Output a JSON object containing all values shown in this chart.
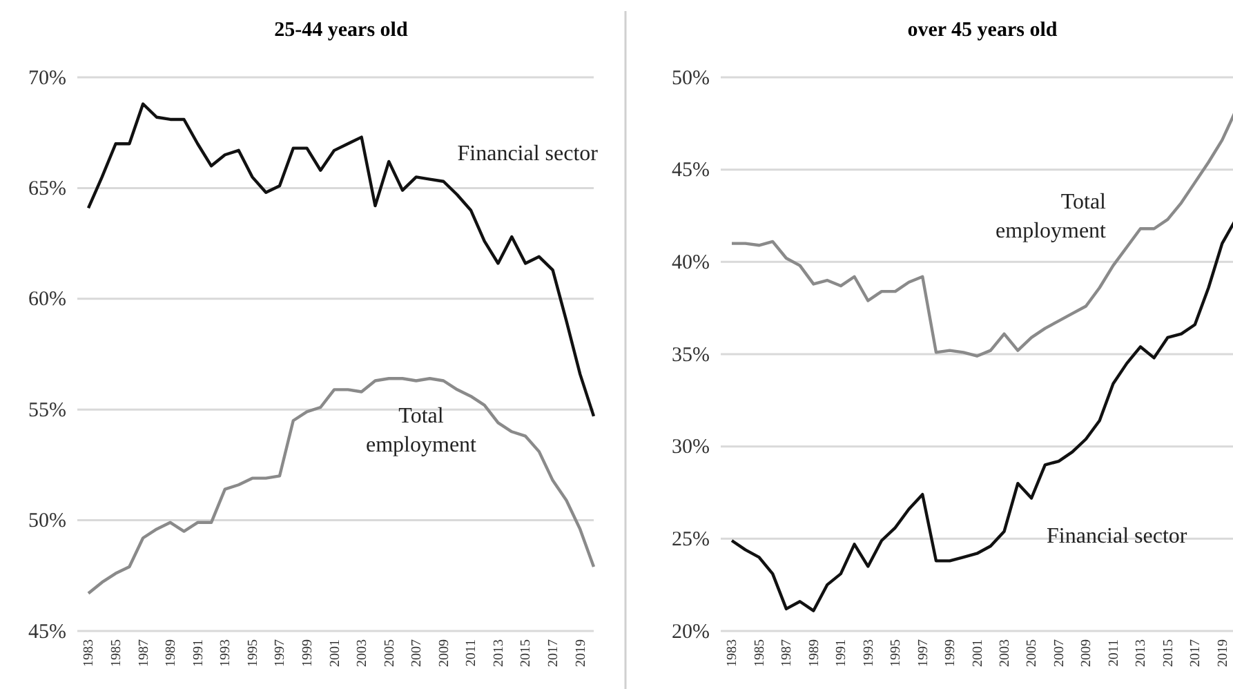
{
  "chart_data": [
    {
      "type": "line",
      "title": "25-44 years old",
      "categories": [
        "1983",
        null,
        "1985",
        null,
        "1987",
        null,
        "1989",
        null,
        "1991",
        null,
        "1993",
        null,
        "1995",
        null,
        "1997",
        null,
        "1999",
        null,
        "2001",
        null,
        "2003",
        null,
        "2005",
        null,
        "2007",
        null,
        "2009",
        null,
        "2011",
        null,
        "2013",
        null,
        "2015",
        null,
        "2017",
        null,
        "2019",
        null
      ],
      "series": [
        {
          "name": "Financial sector",
          "color": "#111111",
          "values": [
            64.1,
            65.5,
            67.0,
            67.0,
            68.8,
            68.2,
            68.1,
            68.1,
            67.0,
            66.0,
            66.5,
            66.7,
            65.5,
            64.8,
            65.1,
            66.8,
            66.8,
            65.8,
            66.7,
            67.0,
            67.3,
            64.2,
            66.2,
            64.9,
            65.5,
            65.4,
            65.3,
            64.7,
            64.0,
            62.6,
            61.6,
            62.8,
            61.6,
            61.9,
            61.3,
            59.0,
            56.6,
            54.7
          ]
        },
        {
          "name": "Total employment",
          "color": "#8a8a8a",
          "values": [
            46.7,
            47.2,
            47.6,
            47.9,
            49.2,
            49.6,
            49.9,
            49.5,
            49.9,
            49.9,
            51.4,
            51.6,
            51.9,
            51.9,
            52.0,
            54.5,
            54.9,
            55.1,
            55.9,
            55.9,
            55.8,
            56.3,
            56.4,
            56.4,
            56.3,
            56.4,
            56.3,
            55.9,
            55.6,
            55.2,
            54.4,
            54.0,
            53.8,
            53.1,
            51.8,
            50.9,
            49.6,
            47.9
          ]
        }
      ],
      "ylim": [
        45,
        70
      ],
      "yticks": [
        {
          "value": 45,
          "label": "45%"
        },
        {
          "value": 50,
          "label": "50%"
        },
        {
          "value": 55,
          "label": "55%"
        },
        {
          "value": 60,
          "label": "60%"
        },
        {
          "value": 65,
          "label": "65%"
        },
        {
          "value": 70,
          "label": "70%"
        }
      ],
      "grid": "y",
      "legend": false
    },
    {
      "type": "line",
      "title": "over 45 years old",
      "categories": [
        "1983",
        null,
        "1985",
        null,
        "1987",
        null,
        "1989",
        null,
        "1991",
        null,
        "1993",
        null,
        "1995",
        null,
        "1997",
        null,
        "1999",
        null,
        "2001",
        null,
        "2003",
        null,
        "2005",
        null,
        "2007",
        null,
        "2009",
        null,
        "2011",
        null,
        "2013",
        null,
        "2015",
        null,
        "2017",
        null,
        "2019",
        null
      ],
      "series": [
        {
          "name": "Total employment",
          "color": "#8a8a8a",
          "values": [
            41.0,
            41.0,
            40.9,
            41.1,
            40.2,
            39.8,
            38.8,
            39.0,
            38.7,
            39.2,
            37.9,
            38.4,
            38.4,
            38.9,
            39.2,
            35.1,
            35.2,
            35.1,
            34.9,
            35.2,
            36.1,
            35.2,
            35.9,
            36.4,
            36.8,
            37.2,
            37.6,
            38.6,
            39.8,
            40.8,
            41.8,
            41.8,
            42.3,
            43.2,
            44.3,
            45.4,
            46.6,
            48.2
          ]
        },
        {
          "name": "Financial sector",
          "color": "#111111",
          "values": [
            24.9,
            24.4,
            24.0,
            23.1,
            21.2,
            21.6,
            21.1,
            22.5,
            23.1,
            24.7,
            23.5,
            24.9,
            25.6,
            26.6,
            27.4,
            23.8,
            23.8,
            24.0,
            24.2,
            24.6,
            25.4,
            28.0,
            27.2,
            29.0,
            29.2,
            29.7,
            30.4,
            31.4,
            33.4,
            34.5,
            35.4,
            34.8,
            35.9,
            36.1,
            36.6,
            38.6,
            41.0,
            42.3
          ]
        }
      ],
      "ylim": [
        20,
        50
      ],
      "yticks": [
        {
          "value": 20,
          "label": "20%"
        },
        {
          "value": 25,
          "label": "25%"
        },
        {
          "value": 30,
          "label": "30%"
        },
        {
          "value": 35,
          "label": "35%"
        },
        {
          "value": 40,
          "label": "40%"
        },
        {
          "value": 45,
          "label": "45%"
        },
        {
          "value": 50,
          "label": "50%"
        }
      ],
      "grid": "y",
      "legend": false
    }
  ]
}
